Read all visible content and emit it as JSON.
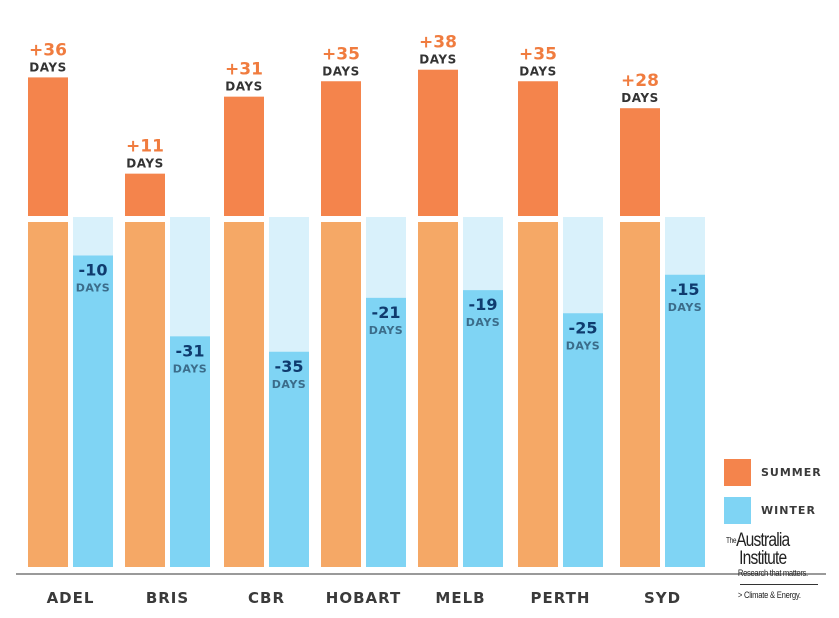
{
  "chart_data": {
    "type": "bar",
    "title": "",
    "xlabel": "",
    "ylabel": "",
    "categories": [
      "ADEL",
      "BRIS",
      "CBR",
      "HOBART",
      "MELB",
      "PERTH",
      "SYD"
    ],
    "series": [
      {
        "name": "SUMMER",
        "values": [
          36,
          11,
          31,
          35,
          38,
          35,
          28
        ],
        "labels": [
          "+36",
          "+11",
          "+31",
          "+35",
          "+38",
          "+35",
          "+28"
        ]
      },
      {
        "name": "WINTER",
        "values": [
          -10,
          -31,
          -35,
          -21,
          -19,
          -25,
          -15
        ],
        "labels": [
          "-10",
          "-31",
          "-35",
          "-21",
          "-19",
          "-25",
          "-15"
        ]
      }
    ],
    "unit_label": "DAYS",
    "grid": false,
    "legend_position": "bottom-right",
    "colors": {
      "summer_change": "#f4844c",
      "summer_base": "#f5a866",
      "winter_base": "#d9f1fb",
      "winter_remaining": "#7fd4f4",
      "summer_text": "#f07c3f",
      "winter_text": "#0f3b6e",
      "days_text_dark": "#333333",
      "days_text_winter": "#3b6c8a",
      "axis": "#9a9a9a",
      "category_text": "#3a3a3a"
    }
  },
  "legend": {
    "summer": "SUMMER",
    "winter": "WINTER"
  },
  "logo": {
    "the": "The",
    "line1": "Australia",
    "line2": "Institute",
    "tagline": "Research that matters.",
    "program": "> Climate & Energy."
  }
}
